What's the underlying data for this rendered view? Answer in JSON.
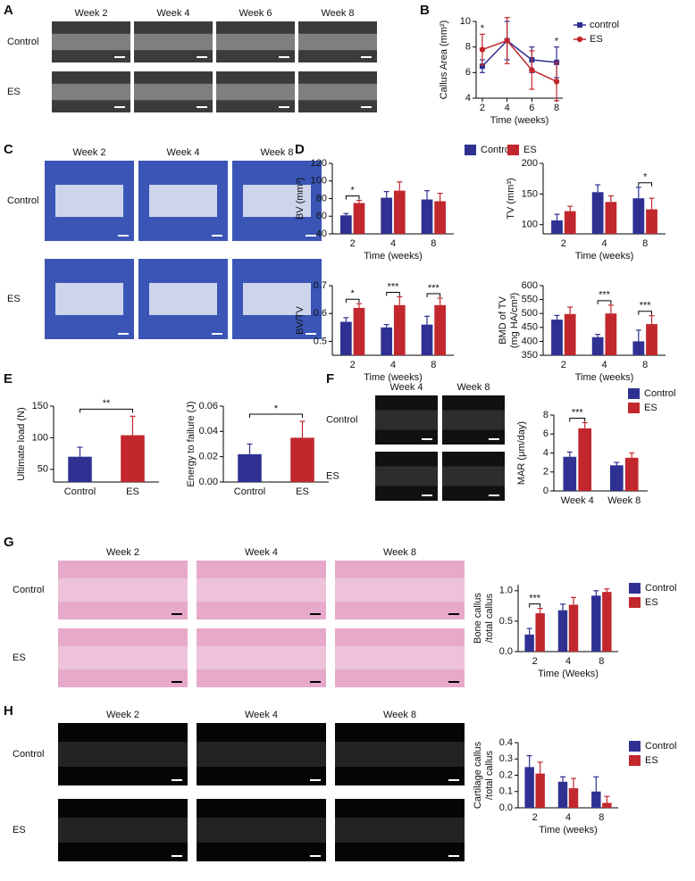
{
  "panel_letters": [
    "A",
    "B",
    "C",
    "D",
    "E",
    "F",
    "G",
    "H"
  ],
  "image_panels": [
    {
      "columns": [
        "Week 2",
        "Week 4",
        "Week 6",
        "Week 8"
      ],
      "rows": [
        "Control",
        "ES"
      ],
      "color": "#3b3b3b"
    },
    {
      "columns": [
        "Week 2",
        "Week 4",
        "Week 8"
      ],
      "rows": [
        "Control",
        "ES"
      ],
      "color": "#3a55b5"
    },
    {
      "columns": [
        "Week 4",
        "Week 8"
      ],
      "rows": [
        "Control",
        "ES"
      ],
      "color": "#111111"
    },
    {
      "columns": [
        "Week 2",
        "Week 4",
        "Week 8"
      ],
      "rows": [
        "Control",
        "ES"
      ],
      "color": "#e7a9c9"
    },
    {
      "columns": [
        "Week 2",
        "Week 4",
        "Week 8"
      ],
      "rows": [
        "Control",
        "ES"
      ],
      "color": "#050505"
    }
  ],
  "chart_data": [
    {
      "type": "line",
      "ylabel": [
        "Callus Area (mm²)"
      ],
      "xlabel": "Time (weeks)",
      "x": [
        2,
        4,
        6,
        8
      ],
      "xlim": [
        1.5,
        8.5
      ],
      "xticks": [
        2,
        4,
        6,
        8
      ],
      "ylim": [
        4,
        10
      ],
      "yticks": [
        4,
        6,
        8,
        10
      ],
      "legend": "right",
      "significance": [
        "*",
        null,
        null,
        "*"
      ],
      "series": [
        {
          "name": "control",
          "color": "#2e3192",
          "marker": "square",
          "values": [
            6.5,
            8.5,
            7.0,
            6.8
          ],
          "errors": [
            0.5,
            1.5,
            1.0,
            1.2
          ]
        },
        {
          "name": "ES",
          "color": "#c1272d",
          "marker": "circle",
          "values": [
            7.8,
            8.5,
            6.2,
            5.3
          ],
          "errors": [
            1.2,
            1.8,
            1.5,
            1.5
          ]
        }
      ]
    },
    {
      "type": "bar",
      "ylabel": [
        "BV (mm³)"
      ],
      "xlabel": "Time (weeks)",
      "categories": [
        "2",
        "4",
        "8"
      ],
      "ylim": [
        40,
        120
      ],
      "yticks": [
        40,
        60,
        80,
        100,
        120
      ],
      "legend": "top",
      "significance": [
        "*",
        null,
        null
      ],
      "series": [
        {
          "name": "Control",
          "color": "#2e3192",
          "values": [
            61,
            81,
            79
          ],
          "errors": [
            2,
            7,
            10
          ]
        },
        {
          "name": "ES",
          "color": "#c1272d",
          "values": [
            75,
            89,
            77
          ],
          "errors": [
            3,
            10,
            9
          ]
        }
      ]
    },
    {
      "type": "bar",
      "ylabel": [
        "TV (mm³)"
      ],
      "xlabel": "Time (weeks)",
      "categories": [
        "2",
        "4",
        "8"
      ],
      "ylim": [
        85,
        200
      ],
      "yticks": [
        100,
        150,
        200
      ],
      "significance": [
        null,
        null,
        "*"
      ],
      "series": [
        {
          "color": "#2e3192",
          "values": [
            107,
            153,
            143
          ],
          "errors": [
            10,
            12,
            18
          ]
        },
        {
          "color": "#c1272d",
          "values": [
            122,
            137,
            125
          ],
          "errors": [
            8,
            10,
            18
          ]
        }
      ]
    },
    {
      "type": "bar",
      "ylabel": [
        "BV/TV"
      ],
      "xlabel": "Time (weeks)",
      "categories": [
        "2",
        "4",
        "8"
      ],
      "ylim": [
        0.45,
        0.7
      ],
      "yticks": [
        0.5,
        0.6,
        0.7
      ],
      "significance": [
        "*",
        "***",
        "***"
      ],
      "series": [
        {
          "color": "#2e3192",
          "values": [
            0.57,
            0.55,
            0.56
          ],
          "errors": [
            0.015,
            0.01,
            0.03
          ]
        },
        {
          "color": "#c1272d",
          "values": [
            0.62,
            0.63,
            0.63
          ],
          "errors": [
            0.015,
            0.03,
            0.025
          ]
        }
      ]
    },
    {
      "type": "bar",
      "ylabel": [
        "BMD of TV",
        "(mg HA/cm³)"
      ],
      "xlabel": "Time (weeks)",
      "categories": [
        "2",
        "4",
        "8"
      ],
      "ylim": [
        350,
        600
      ],
      "yticks": [
        350,
        400,
        450,
        500,
        550,
        600
      ],
      "significance": [
        null,
        "***",
        "***"
      ],
      "series": [
        {
          "color": "#2e3192",
          "values": [
            478,
            415,
            400
          ],
          "errors": [
            15,
            10,
            40
          ]
        },
        {
          "color": "#c1272d",
          "values": [
            498,
            500,
            462
          ],
          "errors": [
            25,
            30,
            30
          ]
        }
      ]
    },
    {
      "type": "bar",
      "ylabel": [
        "Ultimate load (N)"
      ],
      "categories": [
        "Control",
        "ES"
      ],
      "ylim": [
        30,
        150
      ],
      "yticks": [
        50,
        100,
        150
      ],
      "significance": "**",
      "colors": [
        "#2e3192",
        "#c1272d"
      ],
      "values": [
        70,
        104
      ],
      "errors": [
        15,
        30
      ]
    },
    {
      "type": "bar",
      "ylabel": [
        "Energy to failure (J)"
      ],
      "categories": [
        "Control",
        "ES"
      ],
      "ylim": [
        0,
        0.06
      ],
      "yticks": [
        {
          "value": 0,
          "label": "0.00"
        },
        0.02,
        0.04,
        0.06
      ],
      "significance": "*",
      "colors": [
        "#2e3192",
        "#c1272d"
      ],
      "values": [
        0.022,
        0.035
      ],
      "errors": [
        0.008,
        0.013
      ]
    },
    {
      "type": "bar",
      "ylabel": [
        "MAR (μm/day)"
      ],
      "categories": [
        "Week 4",
        "Week 8"
      ],
      "ylim": [
        0,
        8
      ],
      "yticks": [
        0,
        2,
        4,
        6,
        8
      ],
      "legend": "top-right",
      "significance": [
        "***",
        null
      ],
      "series": [
        {
          "name": "Control",
          "color": "#2e3192",
          "values": [
            3.6,
            2.7
          ],
          "errors": [
            0.5,
            0.3
          ]
        },
        {
          "name": "ES",
          "color": "#c1272d",
          "values": [
            6.6,
            3.5
          ],
          "errors": [
            0.6,
            0.5
          ]
        }
      ]
    },
    {
      "type": "bar",
      "ylabel": [
        "Bone callus",
        "/total callus"
      ],
      "xlabel": "Time (Weeks)",
      "categories": [
        "2",
        "4",
        "8"
      ],
      "ylim": [
        0,
        1.1
      ],
      "yticks": [
        {
          "value": 0,
          "label": "0.0"
        },
        0.5,
        {
          "value": 1,
          "label": "1.0"
        }
      ],
      "legend": "right",
      "significance": [
        "***",
        null,
        null
      ],
      "series": [
        {
          "name": "Control",
          "color": "#2e3192",
          "values": [
            0.28,
            0.68,
            0.92
          ],
          "errors": [
            0.1,
            0.1,
            0.08
          ]
        },
        {
          "name": "ES",
          "color": "#c1272d",
          "values": [
            0.63,
            0.77,
            0.98
          ],
          "errors": [
            0.08,
            0.12,
            0.05
          ]
        }
      ]
    },
    {
      "type": "bar",
      "ylabel": [
        "Cartilage callus",
        "/total callus"
      ],
      "xlabel": "Time (weeks)",
      "categories": [
        "2",
        "4",
        "8"
      ],
      "ylim": [
        0,
        0.4
      ],
      "yticks": [
        {
          "value": 0,
          "label": "0.0"
        },
        0.1,
        0.2,
        0.3,
        0.4
      ],
      "legend": "right",
      "series": [
        {
          "name": "Control",
          "color": "#2e3192",
          "values": [
            0.25,
            0.16,
            0.1
          ],
          "errors": [
            0.07,
            0.03,
            0.09
          ]
        },
        {
          "name": "ES",
          "color": "#c1272d",
          "values": [
            0.21,
            0.12,
            0.03
          ],
          "errors": [
            0.07,
            0.06,
            0.04
          ]
        }
      ]
    }
  ]
}
